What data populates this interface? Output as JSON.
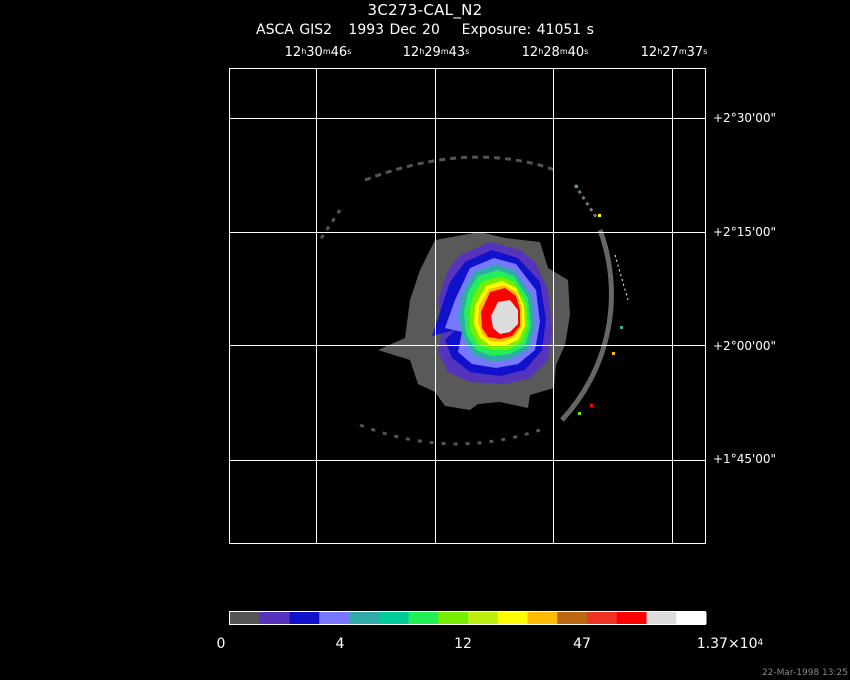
{
  "header": {
    "title": "3C273-CAL_N2",
    "subtitle": "ASCA GIS2   1993 Dec 20    Exposure: 41051 s"
  },
  "ra_ticks": [
    {
      "h": "12",
      "m": "30",
      "s": "46"
    },
    {
      "h": "12",
      "m": "29",
      "s": "43"
    },
    {
      "h": "12",
      "m": "28",
      "s": "40"
    },
    {
      "h": "12",
      "m": "27",
      "s": "37"
    }
  ],
  "dec_ticks": [
    "+2°30'00\"",
    "+2°15'00\"",
    "+2°00'00\"",
    "+1°45'00\""
  ],
  "colorbar": {
    "colors": [
      "#555555",
      "#5533bb",
      "#1111cc",
      "#7777ff",
      "#33aaaa",
      "#00cc99",
      "#22ee55",
      "#77ee00",
      "#bbee11",
      "#ffff00",
      "#ffbb00",
      "#bb6611",
      "#ee3322",
      "#ff0000",
      "#dddddd",
      "#ffffff"
    ],
    "labels": {
      "v0": "0",
      "v1": "4",
      "v2": "12",
      "v3": "47",
      "v4_mantissa": "1.37×10",
      "v4_exp": "4"
    }
  },
  "footer": {
    "timestamp": "22-Mar-1998 13:25"
  },
  "colors": {
    "background": "#000000",
    "grid": "#ffffff",
    "ring": "#666666"
  }
}
